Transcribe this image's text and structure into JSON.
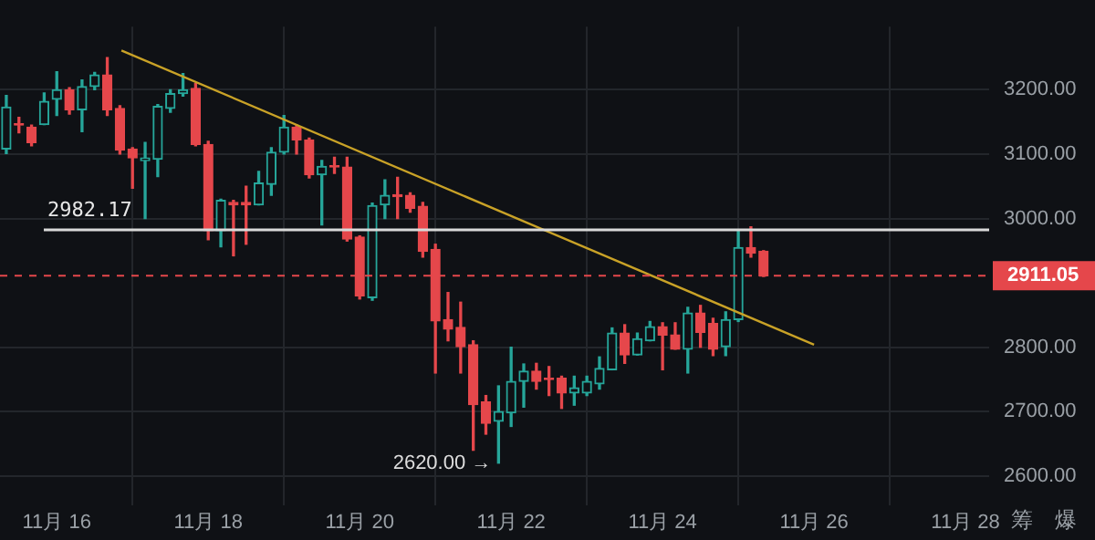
{
  "chart_data": {
    "type": "candlestick",
    "x": [
      "--11-15T08:00",
      "--11-15T12:00",
      "--11-15T16:00",
      "--11-15T20:00",
      "--11-16T00:00",
      "--11-16T04:00",
      "--11-16T08:00",
      "--11-16T12:00",
      "--11-16T16:00",
      "--11-16T20:00",
      "--11-17T00:00",
      "--11-17T04:00",
      "--11-17T08:00",
      "--11-17T12:00",
      "--11-17T16:00",
      "--11-17T20:00",
      "--11-18T00:00",
      "--11-18T04:00",
      "--11-18T08:00",
      "--11-18T12:00",
      "--11-18T16:00",
      "--11-18T20:00",
      "--11-19T00:00",
      "--11-19T04:00",
      "--11-19T08:00",
      "--11-19T12:00",
      "--11-19T16:00",
      "--11-19T20:00",
      "--11-20T00:00",
      "--11-20T04:00",
      "--11-20T08:00",
      "--11-20T12:00",
      "--11-20T16:00",
      "--11-20T20:00",
      "--11-21T00:00",
      "--11-21T04:00",
      "--11-21T08:00",
      "--11-21T12:00",
      "--11-21T16:00",
      "--11-21T20:00",
      "--11-22T00:00",
      "--11-22T04:00",
      "--11-22T08:00",
      "--11-22T12:00",
      "--11-22T16:00",
      "--11-22T20:00",
      "--11-23T00:00",
      "--11-23T04:00",
      "--11-23T08:00",
      "--11-23T12:00",
      "--11-23T16:00",
      "--11-23T20:00",
      "--11-24T00:00",
      "--11-24T04:00",
      "--11-24T08:00",
      "--11-24T12:00",
      "--11-24T16:00",
      "--11-24T20:00",
      "--11-25T00:00",
      "--11-25T04:00",
      "--11-25T08:00"
    ],
    "ohlc": [
      [
        3108,
        3191,
        3101,
        3173
      ],
      [
        3147,
        3157,
        3133,
        3145
      ],
      [
        3142,
        3145,
        3113,
        3118
      ],
      [
        3146,
        3195,
        3146,
        3182
      ],
      [
        3185,
        3228,
        3160,
        3200
      ],
      [
        3200,
        3203,
        3162,
        3169
      ],
      [
        3169,
        3215,
        3135,
        3205
      ],
      [
        3205,
        3227,
        3200,
        3223
      ],
      [
        3223,
        3250,
        3160,
        3169
      ],
      [
        3171,
        3175,
        3100,
        3106
      ],
      [
        3108,
        3110,
        3047,
        3094
      ],
      [
        3090,
        3118,
        3000,
        3094
      ],
      [
        3092,
        3177,
        3065,
        3174
      ],
      [
        3171,
        3200,
        3165,
        3194
      ],
      [
        3194,
        3225,
        3190,
        3200
      ],
      [
        3202,
        3210,
        3113,
        3115
      ],
      [
        3115,
        3120,
        2967,
        2981
      ],
      [
        2981,
        3030,
        2956,
        3028
      ],
      [
        3025,
        3028,
        2942,
        3021
      ],
      [
        3025,
        3050,
        2960,
        3021
      ],
      [
        3021,
        3073,
        3021,
        3055
      ],
      [
        3053,
        3110,
        3036,
        3103
      ],
      [
        3103,
        3160,
        3100,
        3142
      ],
      [
        3142,
        3145,
        3100,
        3122
      ],
      [
        3122,
        3125,
        3063,
        3068
      ],
      [
        3068,
        3090,
        2990,
        3081
      ],
      [
        3082,
        3095,
        3070,
        3080
      ],
      [
        3080,
        3095,
        2965,
        2968
      ],
      [
        2971,
        2973,
        2875,
        2880
      ],
      [
        2877,
        3024,
        2873,
        3020
      ],
      [
        3021,
        3060,
        3000,
        3036
      ],
      [
        3037,
        3064,
        3000,
        3034
      ],
      [
        3036,
        3040,
        3010,
        3016
      ],
      [
        3019,
        3025,
        2940,
        2949
      ],
      [
        2952,
        2960,
        2760,
        2841
      ],
      [
        2843,
        2885,
        2810,
        2828
      ],
      [
        2831,
        2870,
        2760,
        2801
      ],
      [
        2804,
        2810,
        2640,
        2711
      ],
      [
        2715,
        2725,
        2665,
        2682
      ],
      [
        2685,
        2740,
        2620,
        2700
      ],
      [
        2698,
        2800,
        2677,
        2747
      ],
      [
        2747,
        2774,
        2707,
        2763
      ],
      [
        2763,
        2775,
        2735,
        2747
      ],
      [
        2752,
        2770,
        2725,
        2750
      ],
      [
        2752,
        2755,
        2705,
        2729
      ],
      [
        2729,
        2755,
        2710,
        2737
      ],
      [
        2729,
        2755,
        2725,
        2747
      ],
      [
        2743,
        2785,
        2735,
        2767
      ],
      [
        2765,
        2830,
        2765,
        2822
      ],
      [
        2822,
        2835,
        2775,
        2788
      ],
      [
        2788,
        2822,
        2788,
        2813
      ],
      [
        2810,
        2840,
        2810,
        2832
      ],
      [
        2832,
        2838,
        2765,
        2819
      ],
      [
        2819,
        2838,
        2797,
        2797
      ],
      [
        2797,
        2862,
        2760,
        2853
      ],
      [
        2853,
        2865,
        2800,
        2823
      ],
      [
        2837,
        2845,
        2787,
        2797
      ],
      [
        2801,
        2855,
        2787,
        2843
      ],
      [
        2843,
        2980,
        2840,
        2955
      ],
      [
        2955,
        2987,
        2940,
        2946
      ],
      [
        2949,
        2950,
        2910,
        2911.05
      ]
    ],
    "colors": [
      "#26a69a",
      "#e5474b",
      "#e5474b",
      "#26a69a",
      "#26a69a",
      "#e5474b",
      "#26a69a",
      "#26a69a",
      "#e5474b",
      "#e5474b",
      "#e5474b",
      "#26a69a",
      "#26a69a",
      "#26a69a",
      "#26a69a",
      "#e5474b",
      "#e5474b",
      "#26a69a",
      "#e5474b",
      "#e5474b",
      "#26a69a",
      "#26a69a",
      "#26a69a",
      "#e5474b",
      "#e5474b",
      "#26a69a",
      "#e5474b",
      "#e5474b",
      "#e5474b",
      "#26a69a",
      "#26a69a",
      "#e5474b",
      "#e5474b",
      "#e5474b",
      "#e5474b",
      "#e5474b",
      "#e5474b",
      "#e5474b",
      "#e5474b",
      "#26a69a",
      "#26a69a",
      "#26a69a",
      "#e5474b",
      "#e5474b",
      "#e5474b",
      "#26a69a",
      "#26a69a",
      "#26a69a",
      "#26a69a",
      "#e5474b",
      "#26a69a",
      "#26a69a",
      "#e5474b",
      "#e5474b",
      "#26a69a",
      "#e5474b",
      "#e5474b",
      "#26a69a",
      "#26a69a",
      "#e5474b",
      "#e5474b"
    ],
    "series": [
      {
        "type": "line",
        "color": "#c9a227",
        "x": [
          "--11-16T20:30",
          "--11-26T00:00"
        ],
        "values": [
          3261,
          2804
        ]
      }
    ],
    "xlim": [
      "--11-15T06:00",
      "--11-28T07:30"
    ],
    "xticks": [
      {
        "value": "--11-16",
        "label": "11月 16"
      },
      {
        "value": "--11-18",
        "label": "11月 18"
      },
      {
        "value": "--11-20",
        "label": "11月 20"
      },
      {
        "value": "--11-22",
        "label": "11月 22"
      },
      {
        "value": "--11-24",
        "label": "11月 24"
      },
      {
        "value": "--11-26",
        "label": "11月 26"
      },
      {
        "value": "--11-28",
        "label": "11月 28"
      }
    ],
    "ylim": [
      2555,
      3298
    ],
    "yticks": [
      {
        "value": 2600,
        "label": "2600.00"
      },
      {
        "value": 2700,
        "label": "2700.00"
      },
      {
        "value": 2800,
        "label": "2800.00"
      },
      {
        "value": 3000,
        "label": "3000.00"
      },
      {
        "value": 3100,
        "label": "3100.00"
      },
      {
        "value": 3200,
        "label": "3200.00"
      }
    ],
    "ref_lines": [
      {
        "axis": "y",
        "value": 2982.17,
        "label": "2982.17",
        "color": "#d9d9d9"
      },
      {
        "axis": "y",
        "value": 2911.05,
        "label": "2911.05",
        "color": "#e5474b",
        "line_style": "dashed"
      }
    ],
    "annotations": [
      {
        "text": "2620.00 →",
        "x": "--11-21T20:00",
        "y": 2620
      },
      "筹",
      "爆"
    ],
    "grid": true,
    "legend": false
  }
}
